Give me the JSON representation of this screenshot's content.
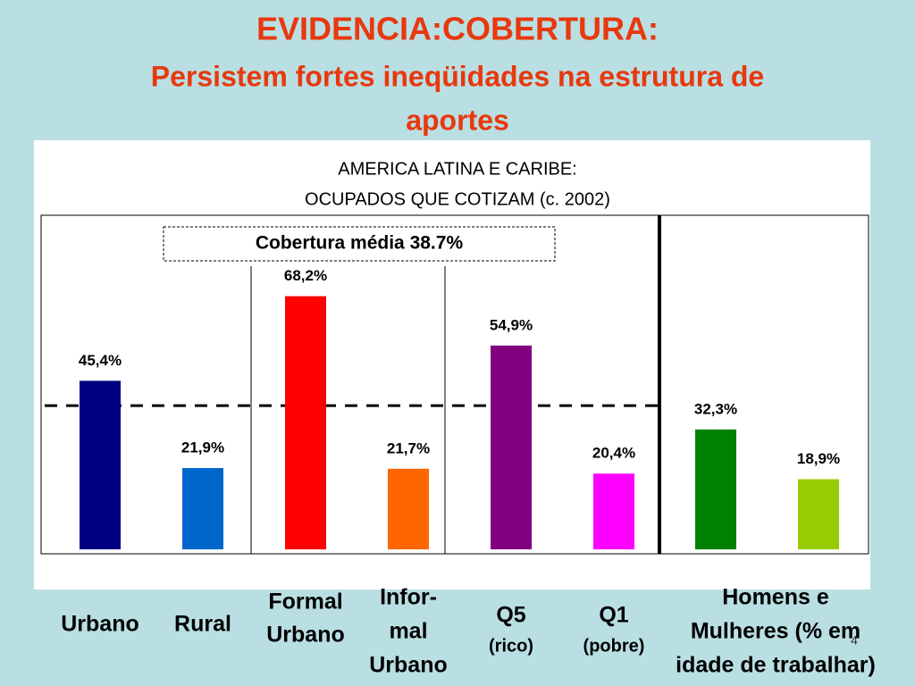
{
  "chart_data": {
    "type": "bar",
    "title": "EVIDENCIA:COBERTURA:",
    "subtitle": [
      "Persistem fortes ineqüidades na estrutura de",
      "aportes"
    ],
    "chart_title": [
      "AMERICA LATINA E CARIBE:",
      "OCUPADOS QUE COTIZAM (c. 2002)"
    ],
    "categories": [
      [
        "Urbano"
      ],
      [
        "Rural"
      ],
      [
        "Formal",
        "Urbano"
      ],
      [
        "Infor-",
        "mal",
        "Urbano"
      ],
      [
        "Q5",
        "(rico)"
      ],
      [
        "Q1",
        "(pobre)"
      ],
      null,
      null
    ],
    "group_label": [
      "Homens e",
      "Mulheres (% em",
      "idade de trabalhar)"
    ],
    "values": [
      45.4,
      21.9,
      68.2,
      21.7,
      54.9,
      20.4,
      32.3,
      18.9
    ],
    "value_labels": [
      "45,4%",
      "21,9%",
      "68,2%",
      "21,7%",
      "54,9%",
      "20,4%",
      "32,3%",
      "18,9%"
    ],
    "colors": [
      "#000080",
      "#0066cc",
      "#ff0000",
      "#ff6600",
      "#800080",
      "#ff00ff",
      "#008000",
      "#99cc00"
    ],
    "mean_line": 38.7,
    "annotation": "Cobertura média 38.7%",
    "ylim": [
      0,
      90
    ],
    "page_number": "4"
  }
}
